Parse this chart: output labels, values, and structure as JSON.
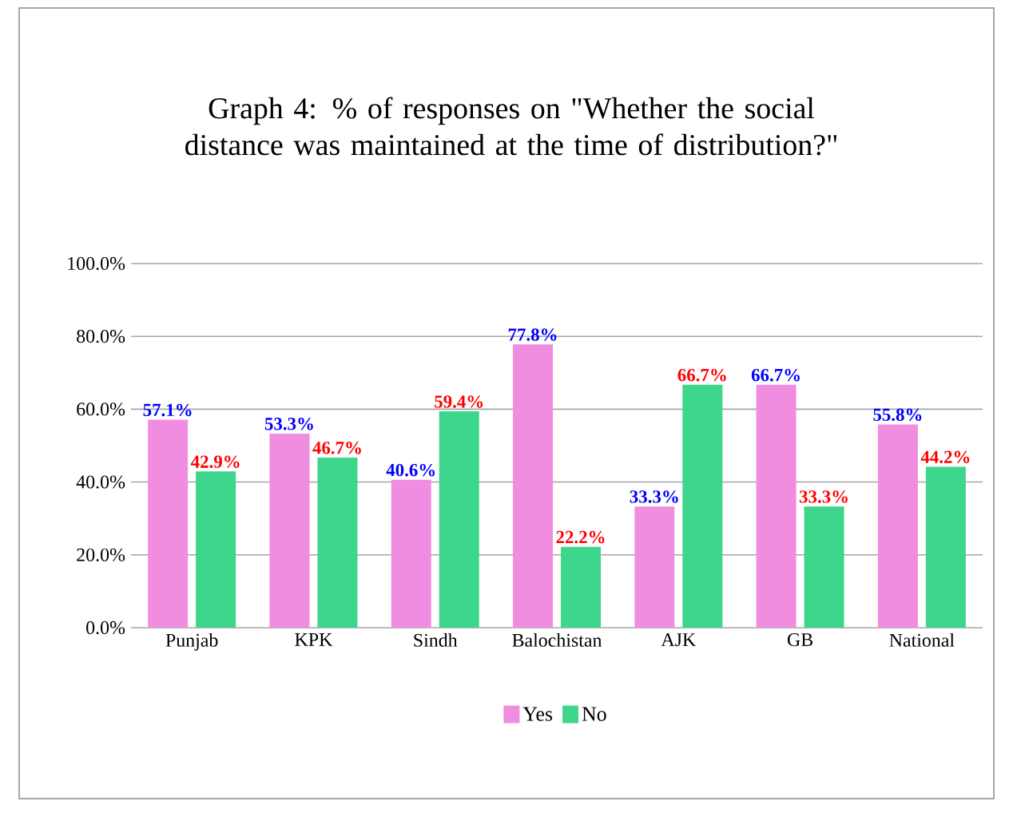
{
  "chart_data": {
    "type": "bar",
    "title": "Graph 4: % of responses on \"Whether the social distance was maintained at the time of distribution?\"",
    "categories": [
      "Punjab",
      "KPK",
      "Sindh",
      "Balochistan",
      "AJK",
      "GB",
      "National"
    ],
    "series": [
      {
        "name": "Yes",
        "color": "#f08de0",
        "values": [
          57.1,
          53.3,
          40.6,
          77.8,
          33.3,
          66.7,
          55.8
        ],
        "value_labels": [
          "57.1%",
          "53.3%",
          "40.6%",
          "77.8%",
          "33.3%",
          "66.7%",
          "55.8%"
        ]
      },
      {
        "name": "No",
        "color": "#3dd68c",
        "values": [
          42.9,
          46.7,
          59.4,
          22.2,
          66.7,
          33.3,
          44.2
        ],
        "value_labels": [
          "42.9%",
          "46.7%",
          "59.4%",
          "22.2%",
          "66.7%",
          "33.3%",
          "44.2%"
        ]
      }
    ],
    "ylim": [
      0,
      100
    ],
    "yticks": [
      {
        "value": 0,
        "label": "0.0%"
      },
      {
        "value": 20,
        "label": "20.0%"
      },
      {
        "value": 40,
        "label": "40.0%"
      },
      {
        "value": 60,
        "label": "60.0%"
      },
      {
        "value": 80,
        "label": "80.0%"
      },
      {
        "value": 100,
        "label": "100.0%"
      }
    ],
    "grid": "y",
    "legend": "bottom"
  }
}
